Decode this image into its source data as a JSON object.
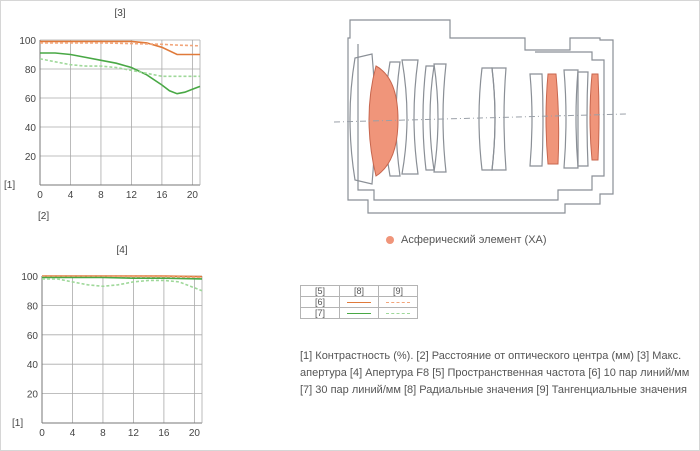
{
  "colors": {
    "radial_10": "#e07a3a",
    "tangential_10": "#f2a57a",
    "radial_30": "#49a845",
    "tangential_30": "#9fd89a",
    "aspheric": "#f0957a",
    "grid": "#aaaaaa"
  },
  "chart_data": [
    {
      "type": "line",
      "title": "[3]",
      "ylabel": "[1]",
      "xlabel": "[2]",
      "xlim": [
        0,
        21
      ],
      "ylim": [
        0,
        100
      ],
      "xticks": [
        "0",
        "4",
        "8",
        "12",
        "16",
        "20"
      ],
      "yticks": [
        "20",
        "40",
        "60",
        "80",
        "100"
      ],
      "grid": true,
      "series": [
        {
          "name": "[6] [8]",
          "color_key": "radial_10",
          "dashed": false,
          "x": [
            0,
            4,
            8,
            12,
            14,
            16,
            18,
            21
          ],
          "y": [
            99,
            99,
            99,
            99,
            98,
            95,
            90,
            90
          ]
        },
        {
          "name": "[6] [9]",
          "color_key": "tangential_10",
          "dashed": true,
          "x": [
            0,
            4,
            8,
            12,
            16,
            18,
            21
          ],
          "y": [
            98,
            98,
            98,
            97.5,
            97,
            96.5,
            96
          ]
        },
        {
          "name": "[7] [8]",
          "color_key": "radial_30",
          "dashed": false,
          "x": [
            0,
            2,
            4,
            6,
            8,
            10,
            12,
            14,
            16,
            17,
            18,
            19,
            20,
            21
          ],
          "y": [
            91,
            91,
            90,
            88,
            86,
            84,
            81,
            76,
            69,
            65,
            63,
            64,
            66,
            68
          ]
        },
        {
          "name": "[7] [9]",
          "color_key": "tangential_30",
          "dashed": true,
          "x": [
            0,
            2,
            4,
            6,
            8,
            10,
            12,
            14,
            16,
            18,
            21
          ],
          "y": [
            87,
            85,
            83,
            82,
            82,
            81,
            79,
            77,
            75,
            75,
            75
          ]
        }
      ]
    },
    {
      "type": "line",
      "title": "[4]",
      "ylabel": "[1]",
      "xlabel": "",
      "xlim": [
        0,
        21
      ],
      "ylim": [
        0,
        100
      ],
      "xticks": [
        "0",
        "4",
        "8",
        "12",
        "16",
        "20"
      ],
      "yticks": [
        "20",
        "40",
        "60",
        "80",
        "100"
      ],
      "grid": true,
      "series": [
        {
          "name": "[6] [8]",
          "color_key": "radial_10",
          "dashed": false,
          "x": [
            0,
            4,
            8,
            12,
            16,
            21
          ],
          "y": [
            100,
            100,
            100,
            100,
            100,
            99.5
          ]
        },
        {
          "name": "[6] [9]",
          "color_key": "tangential_10",
          "dashed": true,
          "x": [
            0,
            4,
            8,
            12,
            16,
            21
          ],
          "y": [
            99.5,
            99.5,
            99.5,
            99.5,
            99.5,
            99
          ]
        },
        {
          "name": "[7] [8]",
          "color_key": "radial_30",
          "dashed": false,
          "x": [
            0,
            4,
            8,
            12,
            16,
            21
          ],
          "y": [
            99,
            99,
            99,
            98.5,
            98.5,
            98
          ]
        },
        {
          "name": "[7] [9]",
          "color_key": "tangential_30",
          "dashed": true,
          "x": [
            0,
            2,
            4,
            6,
            8,
            10,
            12,
            14,
            16,
            18,
            20,
            21
          ],
          "y": [
            98,
            98,
            96,
            94,
            93,
            94,
            96,
            97,
            97,
            96,
            92,
            90
          ]
        }
      ]
    }
  ],
  "aspheric_legend": "Асферический элемент (XA)",
  "key_table": {
    "headers": [
      "[5]",
      "[8]",
      "[9]"
    ],
    "rows": [
      {
        "label": "[6]",
        "radial": "radial_10",
        "tangential": "tangential_10"
      },
      {
        "label": "[7]",
        "radial": "radial_30",
        "tangential": "tangential_30"
      }
    ]
  },
  "caption": "[1] Контрастность (%). [2] Расстояние от оптического центра (мм)  [3] Макс. апертура  [4] Апертура F8  [5] Пространственная частота   [6] 10 пар линий/мм   [7] 30 пар линий/мм   [8] Радиальные значения  [9] Тангенциальные значения"
}
